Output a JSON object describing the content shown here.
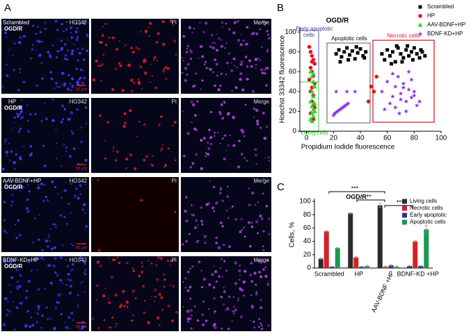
{
  "panel_labels": [
    "A",
    "B",
    "C"
  ],
  "micrographs": {
    "rows": [
      {
        "group": "Scrambled",
        "condition": "OGD/R"
      },
      {
        "group": "HP",
        "condition": "OGD/R"
      },
      {
        "group": "AAV-BDNF+HP",
        "condition": "OGD/R"
      },
      {
        "group": "BDNF-KD+HP",
        "condition": "OGD/R"
      }
    ],
    "channels": [
      "HO342",
      "PI",
      "Merge"
    ],
    "scale_bar": "50 μm"
  },
  "chart_data": [
    {
      "type": "scatter",
      "title": "OGD/R",
      "x_label": "Propidium Iodide  fluorescence",
      "y_label": "Hoechst 33342  fluorescence",
      "xlim": [
        -5,
        100
      ],
      "ylim": [
        0,
        105
      ],
      "xticks": [
        0,
        20,
        40,
        60,
        80,
        100
      ],
      "yticks": [
        0,
        20,
        40,
        60,
        80,
        100
      ],
      "regions": {
        "early": [
          "Early apoptotic",
          "cells"
        ],
        "apoptotic": "Apoptotic cells",
        "necrotic": "Necrotic cells",
        "living": "Living cells"
      },
      "series": [
        {
          "name": "Scrambled",
          "color": "#000000",
          "marker": "square",
          "x": [
            22,
            24,
            26,
            28,
            30,
            32,
            34,
            36,
            38,
            40,
            42,
            44,
            25,
            31,
            37,
            43,
            56,
            58,
            60,
            62,
            64,
            66,
            68,
            70,
            72,
            74,
            76,
            78,
            80,
            82,
            84,
            86,
            88,
            63,
            71,
            79,
            85,
            67,
            75
          ],
          "values": [
            78,
            82,
            75,
            80,
            84,
            77,
            81,
            73,
            79,
            83,
            76,
            80,
            70,
            72,
            85,
            74,
            78,
            72,
            82,
            76,
            80,
            70,
            84,
            78,
            74,
            82,
            76,
            80,
            84,
            78,
            74,
            80,
            76,
            68,
            70,
            72,
            82,
            86,
            86
          ]
        },
        {
          "name": "HP",
          "color": "#e8141c",
          "marker": "circle",
          "x": [
            2,
            3,
            4,
            5,
            6,
            3,
            4,
            5,
            2,
            6,
            4,
            3,
            5,
            4,
            6,
            3,
            5,
            48,
            50,
            46,
            52,
            4,
            5
          ],
          "values": [
            85,
            80,
            76,
            72,
            68,
            64,
            60,
            56,
            52,
            48,
            44,
            40,
            36,
            30,
            24,
            18,
            12,
            45,
            40,
            30,
            55,
            70,
            26
          ]
        },
        {
          "name": "AAV-BDNF+HP",
          "color": "#2bd62b",
          "marker": "triangle",
          "x": [
            3,
            4,
            5,
            6,
            4,
            5,
            3,
            6,
            4,
            5,
            4,
            5,
            3,
            6,
            5,
            4
          ],
          "values": [
            60,
            55,
            50,
            45,
            40,
            35,
            30,
            28,
            25,
            22,
            18,
            15,
            12,
            20,
            58,
            10
          ]
        },
        {
          "name": "BDNF-KD+HP",
          "color": "#8a2be2",
          "marker": "star",
          "x": [
            20,
            21,
            22,
            23,
            24,
            25,
            26,
            27,
            28,
            29,
            30,
            31,
            56,
            60,
            64,
            66,
            68,
            70,
            72,
            74,
            76,
            78,
            80,
            62,
            66,
            70,
            74,
            78,
            82,
            58,
            64,
            72,
            80,
            69,
            76,
            84,
            30,
            36,
            22
          ],
          "values": [
            16,
            18,
            19,
            20,
            21,
            22,
            23,
            24,
            25,
            26,
            27,
            28,
            40,
            50,
            35,
            45,
            55,
            38,
            48,
            30,
            42,
            52,
            36,
            28,
            24,
            32,
            20,
            34,
            26,
            22,
            58,
            44,
            40,
            18,
            60,
            30,
            40,
            40,
            40
          ]
        }
      ]
    },
    {
      "type": "bar",
      "title": "OGD/R",
      "y_label": "Cells, %",
      "ylim": [
        0,
        100
      ],
      "yticks": [
        0,
        20,
        40,
        60,
        80,
        100
      ],
      "categories": [
        "Scrambled",
        "HP",
        "AAV-BDNF +HP",
        "BDNF-KD +HP"
      ],
      "significance": [
        "***",
        "**",
        "***"
      ],
      "series": [
        {
          "name": "Living cells",
          "color": "#2b2b2b",
          "values": [
            14,
            82,
            94,
            3
          ],
          "errors": [
            1,
            1,
            3,
            1
          ]
        },
        {
          "name": "Necrotic cells",
          "color": "#d62027",
          "values": [
            55,
            16,
            2,
            40
          ],
          "errors": [
            1,
            1,
            1,
            1
          ]
        },
        {
          "name": "Early apoptotic",
          "color": "#2e3192",
          "values": [
            2,
            2,
            4,
            3
          ],
          "errors": [
            0.5,
            0.5,
            1,
            0.5
          ]
        },
        {
          "name": "Apoptotic cells",
          "color": "#1a9850",
          "values": [
            30,
            3,
            2,
            58
          ],
          "errors": [
            1,
            1,
            1,
            6
          ]
        }
      ]
    }
  ]
}
